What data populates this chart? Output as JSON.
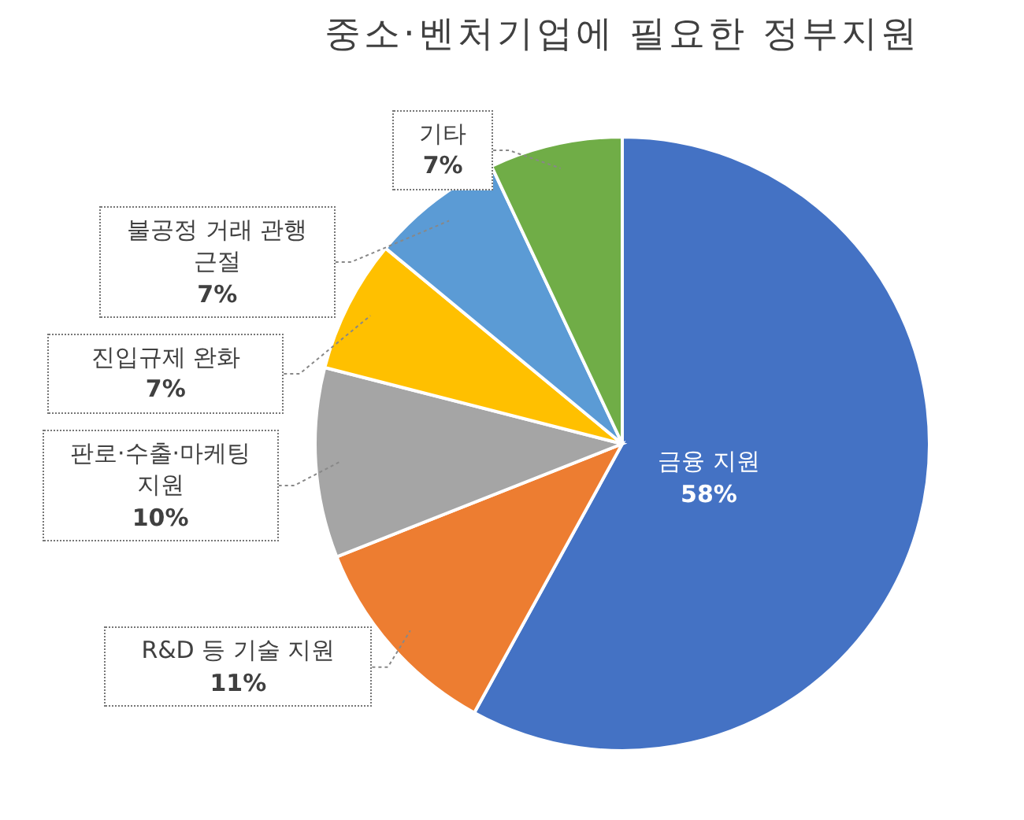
{
  "chart_data": {
    "type": "pie",
    "title": "중소·벤처기업에 필요한 정부지원",
    "categories": [
      "금융 지원",
      "R&D 등 기술 지원",
      "판로·수출·마케팅 지원",
      "진입규제 완화",
      "불공정 거래 관행 근절",
      "기타"
    ],
    "values": [
      58,
      11,
      10,
      7,
      7,
      7
    ],
    "colors": [
      "#4472c4",
      "#ed7d31",
      "#a5a5a5",
      "#ffc000",
      "#5b9bd5",
      "#70ad47"
    ],
    "value_labels": [
      "58%",
      "11%",
      "10%",
      "7%",
      "7%",
      "7%"
    ]
  }
}
